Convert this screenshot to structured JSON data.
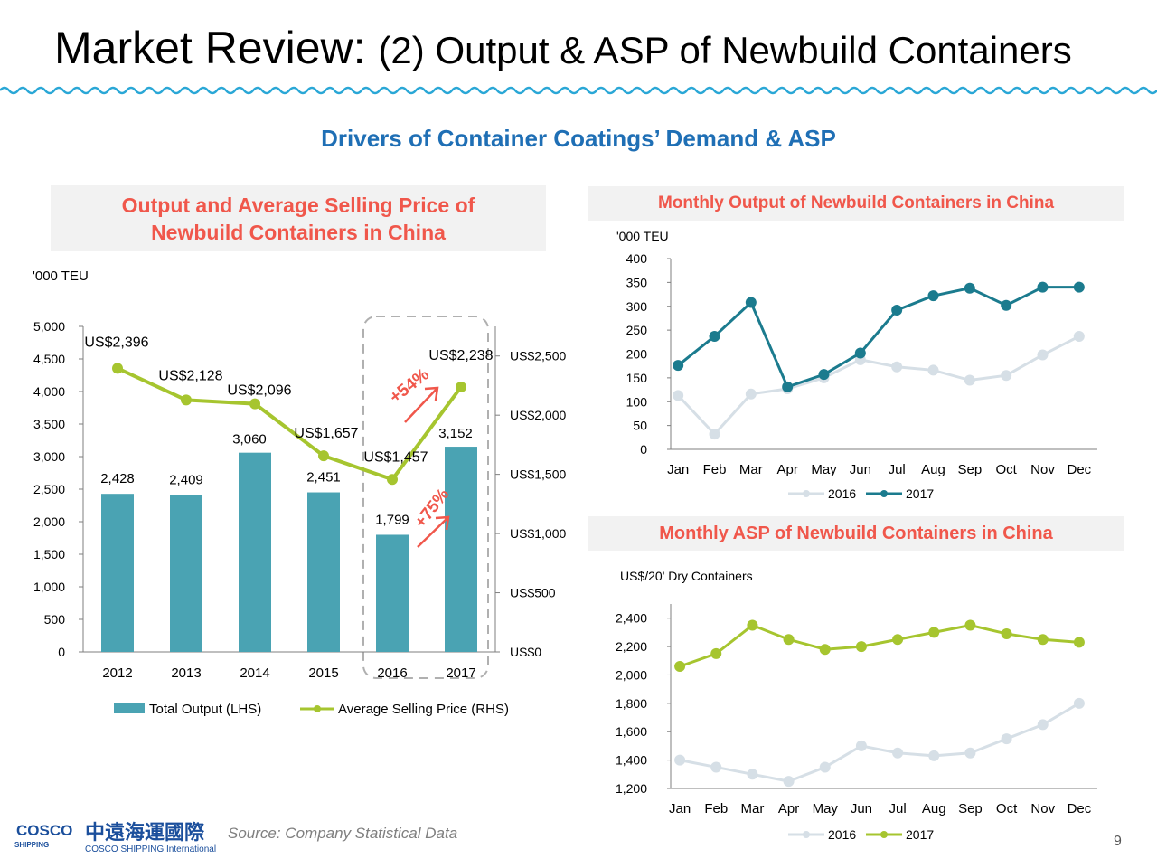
{
  "title": {
    "main": "Market Review:",
    "sub": "(2) Output & ASP of Newbuild Containers"
  },
  "subtitle": "Drivers of Container Coatings’ Demand & ASP",
  "left_panel": {
    "title_line1": "Output and Average Selling Price of",
    "title_line2": "Newbuild Containers in China"
  },
  "right_top_panel": {
    "title": "Monthly Output of Newbuild Containers in China"
  },
  "right_bottom_panel": {
    "title": "Monthly ASP of Newbuild Containers in China"
  },
  "annotations": {
    "output_growth": "+75%",
    "asp_growth": "+54%"
  },
  "footer": {
    "source": "Source: Company Statistical Data",
    "page": "9",
    "company_en": "COSCO SHIPPING International",
    "company_cn": "中遠海運國際",
    "logo_top": "COSCO",
    "logo_bottom": "SHIPPING"
  },
  "colors": {
    "teal": "#4aa3b3",
    "lime": "#a6c52f",
    "dark_teal": "#1b7b8e",
    "light_grey": "#d6dfe6",
    "red": "#f0574b",
    "blue": "#1f6fb5"
  },
  "chart_data": [
    {
      "type": "bar",
      "title": "Output and Average Selling Price of Newbuild Containers in China",
      "ylabel": "'000 TEU",
      "categories": [
        "2012",
        "2013",
        "2014",
        "2015",
        "2016",
        "2017"
      ],
      "ylim": [
        0,
        5000
      ],
      "yticks": [
        "0",
        "500",
        "1,000",
        "1,500",
        "2,000",
        "2,500",
        "3,000",
        "3,500",
        "4,000",
        "4,500",
        "5,000"
      ],
      "y2lim": [
        0,
        2750
      ],
      "y2ticks": [
        "US$0",
        "US$500",
        "US$1,000",
        "US$1,500",
        "US$2,000",
        "US$2,500"
      ],
      "series": [
        {
          "name": "Total Output (LHS)",
          "kind": "bar",
          "axis": "left",
          "values": [
            2428,
            2409,
            3060,
            2451,
            1799,
            3152
          ],
          "labels": [
            "2,428",
            "2,409",
            "3,060",
            "2,451",
            "1,799",
            "3,152"
          ]
        },
        {
          "name": "Average Selling Price (RHS)",
          "kind": "line",
          "axis": "right",
          "values": [
            2396,
            2128,
            2096,
            1657,
            1457,
            2238
          ],
          "labels": [
            "US$2,396",
            "US$2,128",
            "US$2,096",
            "US$1,657",
            "US$1,457",
            "US$2,238"
          ]
        }
      ]
    },
    {
      "type": "line",
      "title": "Monthly Output of Newbuild Containers in China",
      "ylabel": "'000 TEU",
      "categories": [
        "Jan",
        "Feb",
        "Mar",
        "Apr",
        "May",
        "Jun",
        "Jul",
        "Aug",
        "Sep",
        "Oct",
        "Nov",
        "Dec"
      ],
      "ylim": [
        0,
        400
      ],
      "yticks": [
        "0",
        "50",
        "100",
        "150",
        "200",
        "250",
        "300",
        "350",
        "400"
      ],
      "series": [
        {
          "name": "2016",
          "values": [
            113,
            32,
            116,
            127,
            150,
            188,
            173,
            166,
            145,
            155,
            198,
            237
          ]
        },
        {
          "name": "2017",
          "values": [
            176,
            237,
            308,
            131,
            157,
            202,
            292,
            322,
            338,
            302,
            340,
            340
          ]
        }
      ]
    },
    {
      "type": "line",
      "title": "Monthly ASP of Newbuild Containers in China",
      "ylabel": "US$/20' Dry Containers",
      "categories": [
        "Jan",
        "Feb",
        "Mar",
        "Apr",
        "May",
        "Jun",
        "Jul",
        "Aug",
        "Sep",
        "Oct",
        "Nov",
        "Dec"
      ],
      "ylim": [
        1200,
        2500
      ],
      "yticks": [
        "1,200",
        "1,400",
        "1,600",
        "1,800",
        "2,000",
        "2,200",
        "2,400"
      ],
      "series": [
        {
          "name": "2016",
          "values": [
            1400,
            1350,
            1300,
            1250,
            1350,
            1500,
            1450,
            1430,
            1450,
            1550,
            1650,
            1800
          ]
        },
        {
          "name": "2017",
          "values": [
            2060,
            2150,
            2350,
            2250,
            2180,
            2200,
            2250,
            2300,
            2350,
            2290,
            2250,
            2230
          ]
        }
      ]
    }
  ]
}
